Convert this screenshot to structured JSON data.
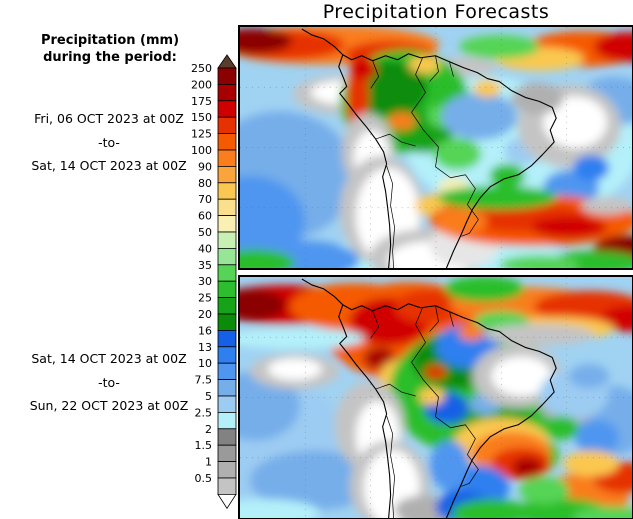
{
  "title": "Precipitation Forecasts",
  "legend": {
    "title_line1": "Precipitation (mm)",
    "title_line2": "during the period:",
    "ticks": [
      "250",
      "200",
      "175",
      "150",
      "125",
      "100",
      "90",
      "80",
      "70",
      "60",
      "50",
      "40",
      "35",
      "30",
      "25",
      "20",
      "16",
      "13",
      "10",
      "7.5",
      "5",
      "2.5",
      "2",
      "1.5",
      "1",
      "0.5"
    ],
    "cell_colors_top_to_bottom": [
      "#8b0000",
      "#a80000",
      "#d10000",
      "#e63200",
      "#f55a00",
      "#fa7d1e",
      "#faa43c",
      "#fac850",
      "#fae08c",
      "#faf0b4",
      "#c8f0b4",
      "#96e696",
      "#55d455",
      "#2cbe2c",
      "#17a317",
      "#0a8c0a",
      "#1460e6",
      "#2f7ff0",
      "#4f96f0",
      "#76aeea",
      "#9cccf2",
      "#b4f0fa",
      "#828282",
      "#9a9a9a",
      "#b0b0b0",
      "#c4c4c4"
    ],
    "above_max_color": "#5a3c2d",
    "below_min_color": "#ffffff"
  },
  "panels": [
    {
      "period_from": "Fri, 06 OCT 2023 at 00Z",
      "period_sep": "-to-",
      "period_to": "Sat, 14 OCT 2023 at 00Z"
    },
    {
      "period_from": "Sat, 14 OCT 2023 at 00Z",
      "period_sep": "-to-",
      "period_to": "Sun, 22 OCT 2023 at 00Z"
    }
  ],
  "map_art": {
    "ocean_base": "#a0d2f2",
    "coastlines": [
      "M62,2 L72,8 L84,12 L95,20 L103,28 L112,33 L122,29 L133,34 L146,29 L158,33 L169,27 L181,31 L196,29 L210,35 L224,41 L238,46 L248,52 L260,55 L272,64 L286,71 L300,75 L313,81 L317,92 L311,104 L315,116 L303,129 L292,140 L279,149 L265,153 L251,161 L241,172 L233,184 L227,197 L221,211 L214,226 L207,243",
      "M103,28 L99,40 L104,52 L107,60 L100,67 L108,77 L117,89 L127,101 L136,113 L144,126 L147,138 L143,151 L146,166 L148,182 L150,200 L151,220 L149,243"
    ],
    "borders": [
      "M183,31 L176,48 L186,66 L172,86 L184,104 L199,121 L196,141 L211,152 L226,149 L236,163 L228,179 L239,194 L230,208 L222,211",
      "M147,140 L153,158 L151,180 L155,202 L153,226 L154,243",
      "M133,34 L139,50 L131,62",
      "M136,113 L150,108 L162,116 L176,120",
      "M196,29 L199,45 L190,55",
      "M210,35 L214,50"
    ],
    "map1_blobs": [
      [
        40,
        150,
        75,
        65,
        "#76aeea"
      ],
      [
        10,
        195,
        55,
        45,
        "#4f96f0"
      ],
      [
        330,
        120,
        70,
        60,
        "#b4f0fa"
      ],
      [
        250,
        115,
        85,
        65,
        "#b4f0fa"
      ],
      [
        200,
        235,
        130,
        25,
        "#b4f0fa"
      ],
      [
        60,
        235,
        60,
        20,
        "#4f96f0"
      ],
      [
        15,
        238,
        40,
        14,
        "#2cbe2c"
      ],
      [
        375,
        75,
        35,
        25,
        "#76aeea"
      ],
      [
        90,
        18,
        110,
        20,
        "#fa7d1e"
      ],
      [
        45,
        18,
        60,
        15,
        "#e63200"
      ],
      [
        12,
        14,
        40,
        13,
        "#8b0000"
      ],
      [
        150,
        28,
        45,
        14,
        "#e63200"
      ],
      [
        345,
        22,
        60,
        18,
        "#f55a00"
      ],
      [
        390,
        20,
        35,
        15,
        "#d10000"
      ],
      [
        300,
        32,
        45,
        12,
        "#fac850"
      ],
      [
        260,
        20,
        40,
        12,
        "#55d455"
      ],
      [
        105,
        68,
        52,
        20,
        "#c4c4c4"
      ],
      [
        103,
        66,
        32,
        12,
        "#ffffff"
      ],
      [
        225,
        40,
        32,
        10,
        "#c4c4c4"
      ],
      [
        165,
        75,
        65,
        52,
        "#2cbe2c"
      ],
      [
        150,
        62,
        38,
        28,
        "#0a8c0a"
      ],
      [
        185,
        105,
        30,
        22,
        "#17a317"
      ],
      [
        118,
        72,
        11,
        42,
        "#e63200"
      ],
      [
        124,
        42,
        13,
        11,
        "#d10000"
      ],
      [
        162,
        95,
        14,
        9,
        "#fa7d1e"
      ],
      [
        185,
        38,
        16,
        9,
        "#fac850"
      ],
      [
        205,
        90,
        18,
        12,
        "#55d455"
      ],
      [
        240,
        90,
        38,
        24,
        "#76aeea"
      ],
      [
        218,
        128,
        24,
        16,
        "#55d455"
      ],
      [
        268,
        150,
        18,
        12,
        "#2cbe2c"
      ],
      [
        248,
        62,
        14,
        9,
        "#fac850"
      ],
      [
        215,
        162,
        16,
        10,
        "#faf0b4"
      ],
      [
        285,
        125,
        20,
        14,
        "#9cccf2"
      ],
      [
        330,
        100,
        52,
        42,
        "#c4c4c4"
      ],
      [
        336,
        96,
        32,
        26,
        "#ffffff"
      ],
      [
        298,
        72,
        26,
        16,
        "#b0b0b0"
      ],
      [
        332,
        162,
        28,
        18,
        "#4f96f0"
      ],
      [
        352,
        142,
        18,
        13,
        "#2f7ff0"
      ],
      [
        310,
        178,
        22,
        10,
        "#c4c4c4"
      ],
      [
        128,
        125,
        26,
        38,
        "#c4c4c4"
      ],
      [
        132,
        132,
        18,
        28,
        "#ffffff"
      ],
      [
        142,
        185,
        42,
        55,
        "#c4c4c4"
      ],
      [
        148,
        190,
        32,
        48,
        "#ffffff"
      ],
      [
        185,
        232,
        55,
        28,
        "#c4c4c4"
      ],
      [
        190,
        236,
        42,
        20,
        "#ffffff"
      ],
      [
        225,
        220,
        35,
        22,
        "#e6e6e6"
      ],
      [
        250,
        180,
        75,
        18,
        "#fac850"
      ],
      [
        295,
        195,
        105,
        26,
        "#f55a00"
      ],
      [
        285,
        192,
        65,
        15,
        "#e63200"
      ],
      [
        330,
        202,
        38,
        11,
        "#d10000"
      ],
      [
        386,
        226,
        32,
        16,
        "#8b0000"
      ],
      [
        222,
        196,
        26,
        13,
        "#fa7d1e"
      ],
      [
        258,
        172,
        60,
        12,
        "#2cbe2c"
      ],
      [
        355,
        238,
        48,
        12,
        "#2cbe2c"
      ],
      [
        300,
        240,
        40,
        10,
        "#55d455"
      ],
      [
        368,
        180,
        26,
        9,
        "#c4c4c4"
      ]
    ],
    "map2_blobs": [
      [
        35,
        165,
        70,
        60,
        "#9cccf2"
      ],
      [
        15,
        130,
        45,
        35,
        "#76aeea"
      ],
      [
        75,
        205,
        65,
        30,
        "#76aeea"
      ],
      [
        25,
        238,
        55,
        14,
        "#b4f0fa"
      ],
      [
        375,
        145,
        35,
        35,
        "#76aeea"
      ],
      [
        358,
        162,
        22,
        18,
        "#4f96f0"
      ],
      [
        45,
        28,
        75,
        20,
        "#d10000"
      ],
      [
        10,
        28,
        35,
        16,
        "#8b0000"
      ],
      [
        115,
        30,
        65,
        24,
        "#f55a00"
      ],
      [
        170,
        55,
        85,
        50,
        "#f55a00"
      ],
      [
        150,
        45,
        40,
        24,
        "#d10000"
      ],
      [
        190,
        30,
        35,
        17,
        "#e63200"
      ],
      [
        140,
        82,
        16,
        11,
        "#a80000"
      ],
      [
        205,
        80,
        30,
        20,
        "#fa7d1e"
      ],
      [
        165,
        100,
        25,
        18,
        "#fac850"
      ],
      [
        285,
        28,
        75,
        18,
        "#fa7d1e"
      ],
      [
        350,
        30,
        55,
        16,
        "#e63200"
      ],
      [
        390,
        42,
        28,
        13,
        "#d10000"
      ],
      [
        315,
        52,
        60,
        12,
        "#fac850"
      ],
      [
        245,
        12,
        40,
        13,
        "#2cbe2c"
      ],
      [
        262,
        45,
        28,
        11,
        "#55d455"
      ],
      [
        55,
        62,
        70,
        11,
        "#b4f0fa"
      ],
      [
        55,
        95,
        45,
        18,
        "#c4c4c4"
      ],
      [
        55,
        93,
        27,
        11,
        "#ffffff"
      ],
      [
        235,
        115,
        85,
        65,
        "#2cbe2c"
      ],
      [
        215,
        85,
        42,
        28,
        "#0a8c0a"
      ],
      [
        255,
        150,
        38,
        28,
        "#17a317"
      ],
      [
        290,
        180,
        30,
        20,
        "#2cbe2c"
      ],
      [
        228,
        70,
        32,
        22,
        "#2f7ff0"
      ],
      [
        207,
        132,
        22,
        16,
        "#1460e6"
      ],
      [
        262,
        103,
        18,
        13,
        "#4f96f0"
      ],
      [
        246,
        128,
        16,
        11,
        "#76aeea"
      ],
      [
        192,
        120,
        13,
        9,
        "#fac850"
      ],
      [
        196,
        96,
        11,
        7,
        "#e63200"
      ],
      [
        232,
        56,
        13,
        8,
        "#fa7d1e"
      ],
      [
        278,
        100,
        45,
        32,
        "#c4c4c4"
      ],
      [
        282,
        100,
        30,
        20,
        "#ffffff"
      ],
      [
        300,
        58,
        55,
        11,
        "#c4c4c4"
      ],
      [
        330,
        128,
        30,
        20,
        "#b0b0b0"
      ],
      [
        335,
        118,
        35,
        25,
        "#9cccf2"
      ],
      [
        322,
        152,
        18,
        12,
        "#2cbe2c"
      ],
      [
        350,
        100,
        20,
        12,
        "#76aeea"
      ],
      [
        130,
        150,
        35,
        45,
        "#c4c4c4"
      ],
      [
        138,
        160,
        22,
        35,
        "#ffffff"
      ],
      [
        150,
        210,
        40,
        45,
        "#c4c4c4"
      ],
      [
        152,
        212,
        28,
        38,
        "#ffffff"
      ],
      [
        185,
        235,
        30,
        15,
        "#b0b0b0"
      ],
      [
        262,
        168,
        48,
        26,
        "#fac850"
      ],
      [
        272,
        178,
        40,
        22,
        "#fa7d1e"
      ],
      [
        282,
        188,
        30,
        16,
        "#e63200"
      ],
      [
        288,
        192,
        15,
        10,
        "#a80000"
      ],
      [
        238,
        212,
        32,
        22,
        "#2f7ff0"
      ],
      [
        224,
        232,
        28,
        16,
        "#1460e6"
      ],
      [
        210,
        190,
        20,
        25,
        "#4f96f0"
      ],
      [
        252,
        238,
        40,
        14,
        "#2cbe2c"
      ],
      [
        345,
        222,
        45,
        24,
        "#fa7d1e"
      ],
      [
        382,
        202,
        28,
        16,
        "#e63200"
      ],
      [
        322,
        238,
        48,
        15,
        "#2cbe2c"
      ],
      [
        372,
        242,
        38,
        11,
        "#55d455"
      ],
      [
        352,
        188,
        28,
        13,
        "#fac850"
      ],
      [
        305,
        215,
        25,
        14,
        "#55d455"
      ]
    ]
  }
}
